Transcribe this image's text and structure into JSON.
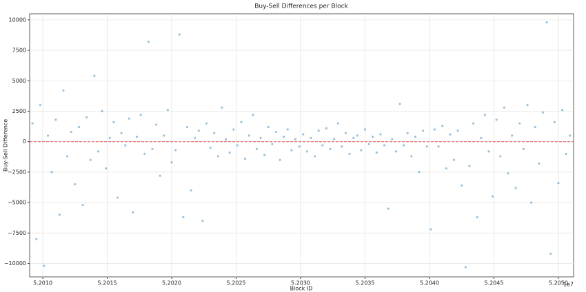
{
  "chart_data": {
    "type": "scatter",
    "title": "Buy-Sell Differences per Block",
    "x_label": "Block ID",
    "y_label": "Buy-Sell Difference",
    "x_offset_label": "1e7",
    "color": "#1f77b4",
    "grid": true,
    "hline": {
      "y": 0,
      "color": "#e05a5a"
    },
    "xlim": [
      52008980,
      52051180
    ],
    "ylim": [
      -11100,
      10500
    ],
    "xticks": [
      {
        "value": 52010000,
        "label": "5.2010"
      },
      {
        "value": 52015000,
        "label": "5.2015"
      },
      {
        "value": 52020000,
        "label": "5.2020"
      },
      {
        "value": 52025000,
        "label": "5.2025"
      },
      {
        "value": 52030000,
        "label": "5.2030"
      },
      {
        "value": 52035000,
        "label": "5.2035"
      },
      {
        "value": 52040000,
        "label": "5.2040"
      },
      {
        "value": 52045000,
        "label": "5.2045"
      },
      {
        "value": 52050000,
        "label": "5.2050"
      }
    ],
    "yticks": [
      {
        "value": -10000,
        "label": "−10000"
      },
      {
        "value": -7500,
        "label": "−7500"
      },
      {
        "value": -5000,
        "label": "−5000"
      },
      {
        "value": -2500,
        "label": "−2500"
      },
      0,
      2500,
      5000,
      7500,
      10000
    ],
    "x": [
      52009200,
      52009500,
      52009800,
      52010100,
      52010400,
      52010700,
      52011000,
      52011300,
      52011600,
      52011900,
      52012200,
      52012500,
      52012800,
      52013100,
      52013400,
      52013700,
      52014000,
      52014300,
      52014600,
      52014900,
      52015200,
      52015500,
      52015800,
      52016100,
      52016400,
      52016700,
      52017000,
      52017300,
      52017600,
      52017900,
      52018200,
      52018500,
      52018800,
      52019100,
      52019400,
      52019700,
      52020000,
      52020300,
      52020600,
      52020900,
      52021200,
      52021500,
      52021800,
      52022100,
      52022400,
      52022700,
      52023000,
      52023300,
      52023600,
      52023900,
      52024200,
      52024500,
      52024800,
      52025100,
      52025400,
      52025700,
      52026000,
      52026300,
      52026600,
      52026900,
      52027200,
      52027500,
      52027800,
      52028100,
      52028400,
      52028700,
      52029000,
      52029300,
      52029600,
      52029900,
      52030200,
      52030500,
      52030800,
      52031100,
      52031400,
      52031700,
      52032000,
      52032300,
      52032600,
      52032900,
      52033200,
      52033500,
      52033800,
      52034100,
      52034400,
      52034700,
      52035000,
      52035300,
      52035600,
      52035900,
      52036200,
      52036500,
      52036800,
      52037100,
      52037400,
      52037700,
      52038000,
      52038300,
      52038600,
      52038900,
      52039200,
      52039500,
      52039800,
      52040100,
      52040400,
      52040700,
      52041000,
      52041300,
      52041600,
      52041900,
      52042200,
      52042500,
      52042800,
      52043100,
      52043400,
      52043700,
      52044000,
      52044300,
      52044600,
      52044900,
      52045200,
      52045500,
      52045800,
      52046100,
      52046400,
      52046700,
      52047000,
      52047300,
      52047600,
      52047900,
      52048200,
      52048500,
      52048800,
      52049100,
      52049400,
      52049700,
      52050000,
      52050300,
      52050600,
      52050900
    ],
    "values": [
      1500,
      -8000,
      3000,
      -10200,
      500,
      -2500,
      1800,
      -6000,
      4200,
      -1200,
      800,
      -3500,
      1200,
      -5200,
      2000,
      -1500,
      5400,
      -800,
      2500,
      -2200,
      300,
      1600,
      -4600,
      700,
      -300,
      1900,
      -5800,
      400,
      2200,
      -1000,
      8200,
      -600,
      1400,
      -2800,
      500,
      2600,
      -1700,
      -700,
      8800,
      -6200,
      1200,
      -4000,
      300,
      900,
      -6500,
      1500,
      -500,
      700,
      -1200,
      2800,
      200,
      -900,
      1000,
      -300,
      1600,
      -1400,
      500,
      2200,
      -600,
      300,
      -1100,
      1200,
      -200,
      800,
      -1500,
      400,
      1000,
      -700,
      200,
      -400,
      600,
      -800,
      300,
      -1200,
      900,
      -300,
      1100,
      -600,
      200,
      1500,
      -400,
      700,
      -1000,
      300,
      500,
      -700,
      1000,
      -200,
      400,
      -900,
      600,
      -300,
      -5500,
      200,
      -800,
      3100,
      -300,
      700,
      -1200,
      400,
      -2500,
      900,
      -400,
      -7200,
      1000,
      -400,
      1300,
      -2200,
      600,
      -1500,
      900,
      -3600,
      -10300,
      -2000,
      1500,
      -6200,
      300,
      2200,
      -800,
      -4500,
      1800,
      -1200,
      2800,
      -2600,
      500,
      -3800,
      1500,
      -600,
      3000,
      -5000,
      1200,
      -1800,
      2400,
      9800,
      -9200,
      1600,
      -3400,
      2600,
      -1000,
      500
    ]
  }
}
